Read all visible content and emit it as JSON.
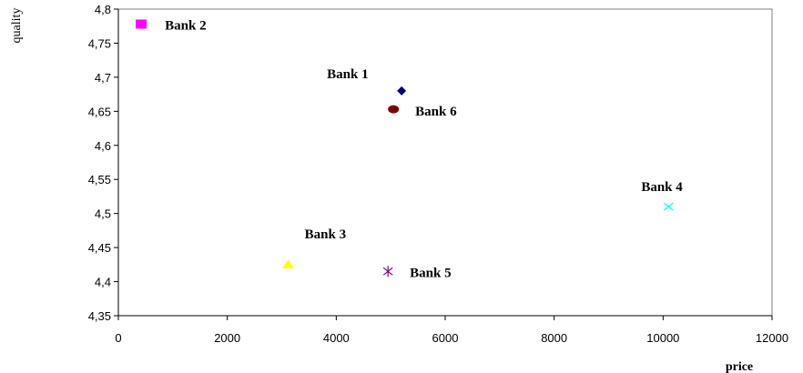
{
  "chart_data": {
    "type": "scatter",
    "xlabel": "price",
    "ylabel": "quality",
    "xlim": [
      0,
      12000
    ],
    "ylim": [
      4.35,
      4.8
    ],
    "x_ticks": [
      "0",
      "2000",
      "4000",
      "6000",
      "8000",
      "10000",
      "12000"
    ],
    "y_ticks": [
      "4,35",
      "4,4",
      "4,45",
      "4,5",
      "4,55",
      "4,6",
      "4,65",
      "4,7",
      "4,75",
      "4,8"
    ],
    "grid": false,
    "points": [
      {
        "label": "Bank 1",
        "x": 5200,
        "y": 4.68,
        "marker": "diamond",
        "color": "#000080"
      },
      {
        "label": "Bank 2",
        "x": 420,
        "y": 4.778,
        "marker": "square",
        "color": "#ff00ff"
      },
      {
        "label": "Bank 3",
        "x": 3120,
        "y": 4.425,
        "marker": "triangle",
        "color": "#ffff00"
      },
      {
        "label": "Bank 4",
        "x": 10100,
        "y": 4.51,
        "marker": "x",
        "color": "#00ffff"
      },
      {
        "label": "Bank 5",
        "x": 4950,
        "y": 4.415,
        "marker": "star",
        "color": "#800080"
      },
      {
        "label": "Bank 6",
        "x": 5050,
        "y": 4.653,
        "marker": "circle",
        "color": "#800000"
      }
    ]
  }
}
